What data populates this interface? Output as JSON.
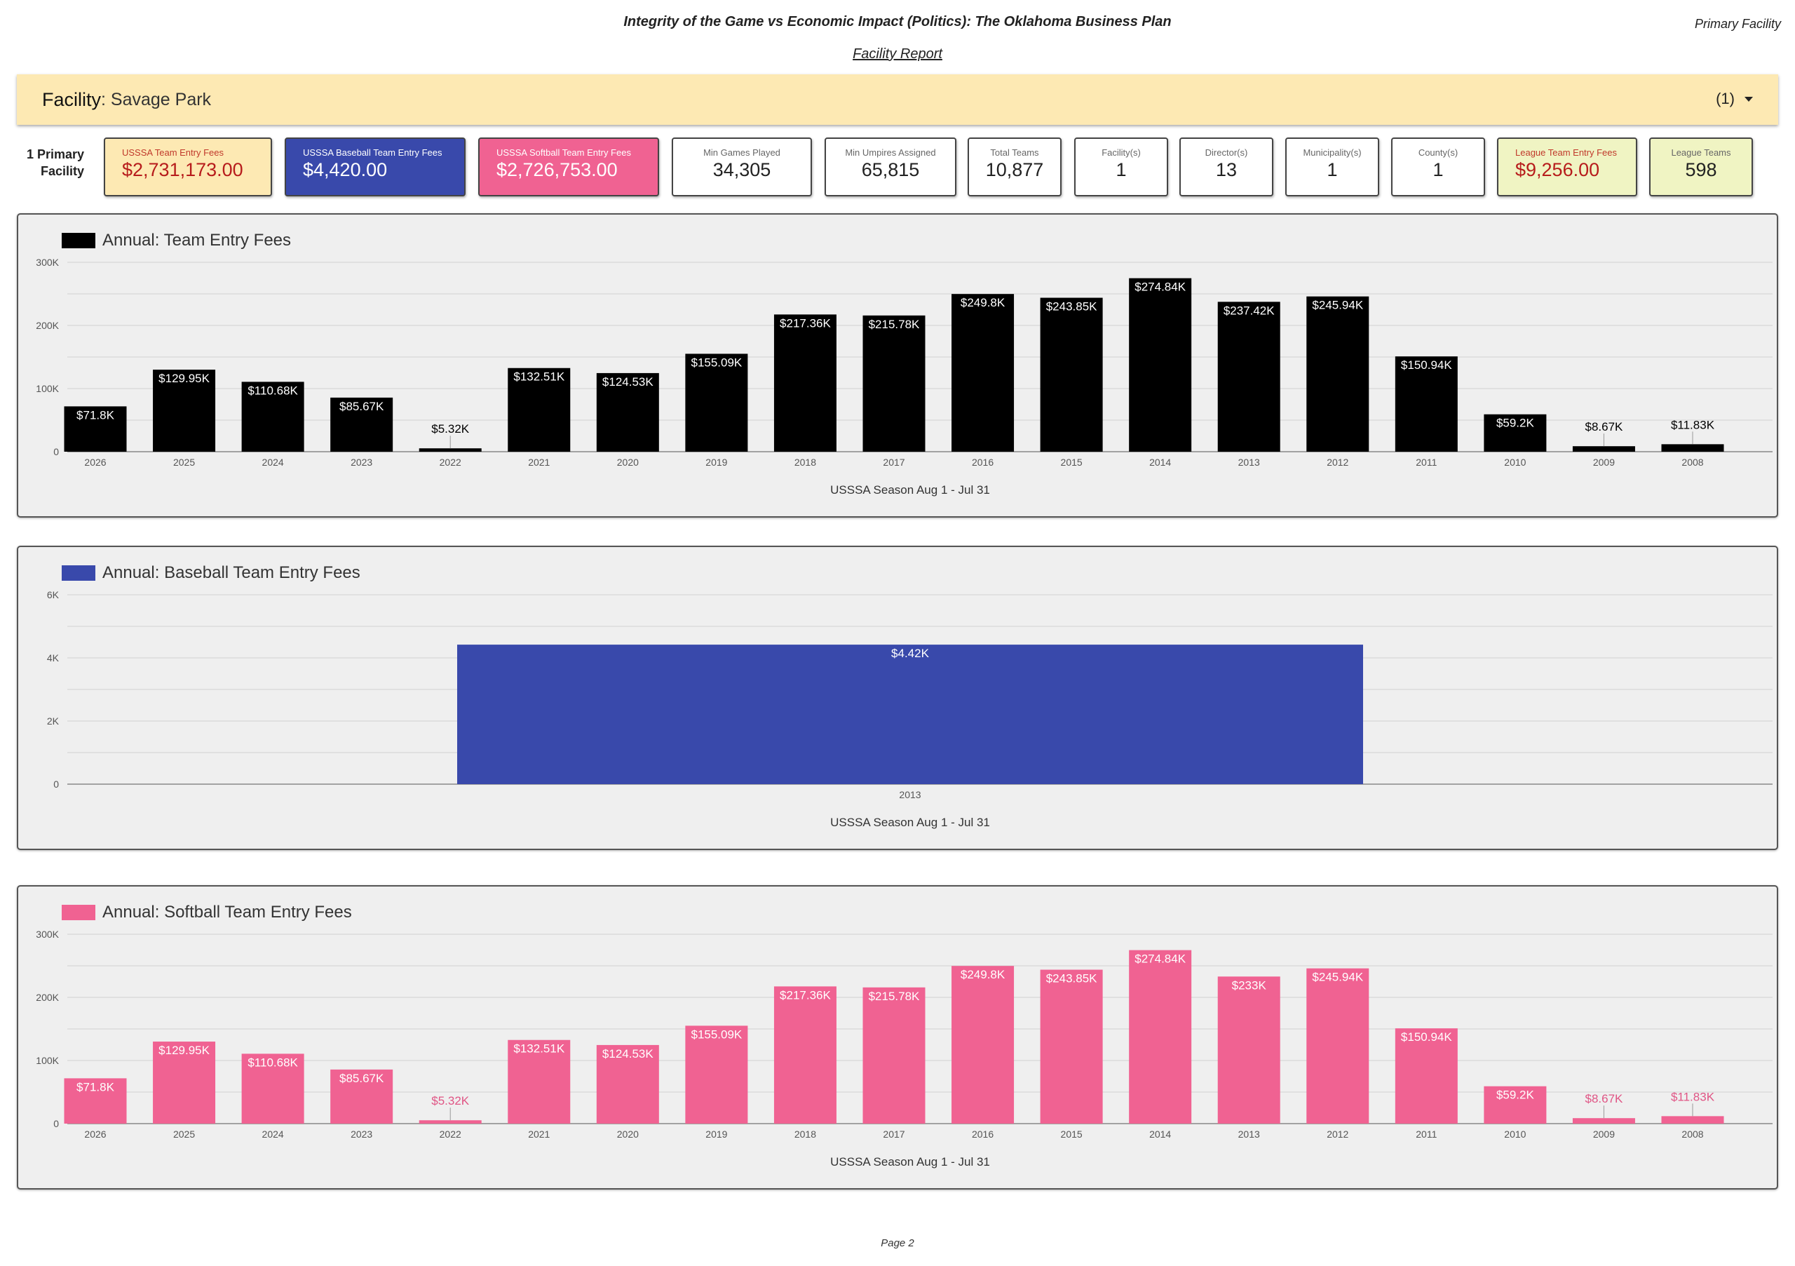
{
  "header": {
    "title": "Integrity of the Game vs Economic Impact (Politics): The Oklahoma Business Plan",
    "subtitle": "Facility Report",
    "corner_label": "Primary Facility"
  },
  "facility_filter": {
    "label": "Facility",
    "value": ": Savage Park",
    "selected_count": "(1)",
    "icon": "caret-down-icon"
  },
  "kpi_row": {
    "lead_label_line1": "1 Primary",
    "lead_label_line2": "Facility",
    "cards": [
      {
        "label": "USSSA Team Entry Fees",
        "value": "$2,731,173.00",
        "bg": "#fde9b3",
        "label_color": "#c0392b",
        "value_color": "#b71c1c"
      },
      {
        "label": "USSSA Baseball Team Entry Fees",
        "value": "$4,420.00",
        "bg": "#3949ab",
        "label_color": "#ffffff",
        "value_color": "#ffffff"
      },
      {
        "label": "USSSA Softball Team Entry Fees",
        "value": "$2,726,753.00",
        "bg": "#f06292",
        "label_color": "#ffffff",
        "value_color": "#ffffff"
      },
      {
        "label": "Min Games Played",
        "value": "34,305",
        "bg": "#ffffff",
        "label_color": "#666666",
        "value_color": "#222222"
      },
      {
        "label": "Min Umpires Assigned",
        "value": "65,815",
        "bg": "#ffffff",
        "label_color": "#666666",
        "value_color": "#222222"
      },
      {
        "label": "Total Teams",
        "value": "10,877",
        "bg": "#ffffff",
        "label_color": "#666666",
        "value_color": "#222222"
      },
      {
        "label": "Facility(s)",
        "value": "1",
        "bg": "#ffffff",
        "label_color": "#666666",
        "value_color": "#222222"
      },
      {
        "label": "Director(s)",
        "value": "13",
        "bg": "#ffffff",
        "label_color": "#666666",
        "value_color": "#222222"
      },
      {
        "label": "Municipality(s)",
        "value": "1",
        "bg": "#ffffff",
        "label_color": "#666666",
        "value_color": "#222222"
      },
      {
        "label": "County(s)",
        "value": "1",
        "bg": "#ffffff",
        "label_color": "#666666",
        "value_color": "#222222"
      },
      {
        "label": "League Team Entry Fees",
        "value": "$9,256.00",
        "bg": "#f0f4c3",
        "label_color": "#c0392b",
        "value_color": "#b71c1c"
      },
      {
        "label": "League Teams",
        "value": "598",
        "bg": "#f0f4c3",
        "label_color": "#666666",
        "value_color": "#222222"
      }
    ]
  },
  "chart_data": [
    {
      "type": "bar",
      "title": "Annual: Team Entry Fees",
      "color": "#000000",
      "label_color_inside": "#ffffff",
      "label_color_outside": "#000000",
      "xlabel": "USSSA Season Aug 1 - Jul 31",
      "ylabel": "",
      "ylim": [
        0,
        300000
      ],
      "yticks": [
        0,
        100000,
        200000,
        300000
      ],
      "ytick_labels": [
        "0",
        "100K",
        "200K",
        "300K"
      ],
      "gridlines": true,
      "categories": [
        "2026",
        "2025",
        "2024",
        "2023",
        "2022",
        "2021",
        "2020",
        "2019",
        "2018",
        "2017",
        "2016",
        "2015",
        "2014",
        "2013",
        "2012",
        "2011",
        "2010",
        "2009",
        "2008"
      ],
      "values": [
        71800,
        129950,
        110680,
        85670,
        5320,
        132510,
        124530,
        155090,
        217360,
        215780,
        249800,
        243850,
        274840,
        237420,
        245940,
        150940,
        59200,
        8670,
        11830
      ],
      "data_labels": [
        "$71.8K",
        "$129.95K",
        "$110.68K",
        "$85.67K",
        "$5.32K",
        "$132.51K",
        "$124.53K",
        "$155.09K",
        "$217.36K",
        "$215.78K",
        "$249.8K",
        "$243.85K",
        "$274.84K",
        "$237.42K",
        "$245.94K",
        "$150.94K",
        "$59.2K",
        "$8.67K",
        "$11.83K"
      ]
    },
    {
      "type": "bar",
      "title": "Annual: Baseball Team Entry Fees",
      "color": "#3949ab",
      "label_color_inside": "#ffffff",
      "label_color_outside": "#3949ab",
      "xlabel": "USSSA Season Aug 1 - Jul 31",
      "ylabel": "",
      "ylim": [
        0,
        6000
      ],
      "yticks": [
        0,
        2000,
        4000,
        6000
      ],
      "ytick_labels": [
        "0",
        "2K",
        "4K",
        "6K"
      ],
      "gridlines": true,
      "categories": [
        "2013"
      ],
      "values": [
        4420
      ],
      "data_labels": [
        "$4.42K"
      ]
    },
    {
      "type": "bar",
      "title": "Annual: Softball Team Entry Fees",
      "color": "#f06292",
      "label_color_inside": "#ffffff",
      "label_color_outside": "#e05585",
      "xlabel": "USSSA Season Aug 1 - Jul 31",
      "ylabel": "",
      "ylim": [
        0,
        300000
      ],
      "yticks": [
        0,
        100000,
        200000,
        300000
      ],
      "ytick_labels": [
        "0",
        "100K",
        "200K",
        "300K"
      ],
      "gridlines": true,
      "categories": [
        "2026",
        "2025",
        "2024",
        "2023",
        "2022",
        "2021",
        "2020",
        "2019",
        "2018",
        "2017",
        "2016",
        "2015",
        "2014",
        "2013",
        "2012",
        "2011",
        "2010",
        "2009",
        "2008"
      ],
      "values": [
        71800,
        129950,
        110680,
        85670,
        5320,
        132510,
        124530,
        155090,
        217360,
        215780,
        249800,
        243850,
        274840,
        233000,
        245940,
        150940,
        59200,
        8670,
        11830
      ],
      "data_labels": [
        "$71.8K",
        "$129.95K",
        "$110.68K",
        "$85.67K",
        "$5.32K",
        "$132.51K",
        "$124.53K",
        "$155.09K",
        "$217.36K",
        "$215.78K",
        "$249.8K",
        "$243.85K",
        "$274.84K",
        "$233K",
        "$245.94K",
        "$150.94K",
        "$59.2K",
        "$8.67K",
        "$11.83K"
      ]
    }
  ],
  "footer": {
    "page_label": "Page 2"
  }
}
